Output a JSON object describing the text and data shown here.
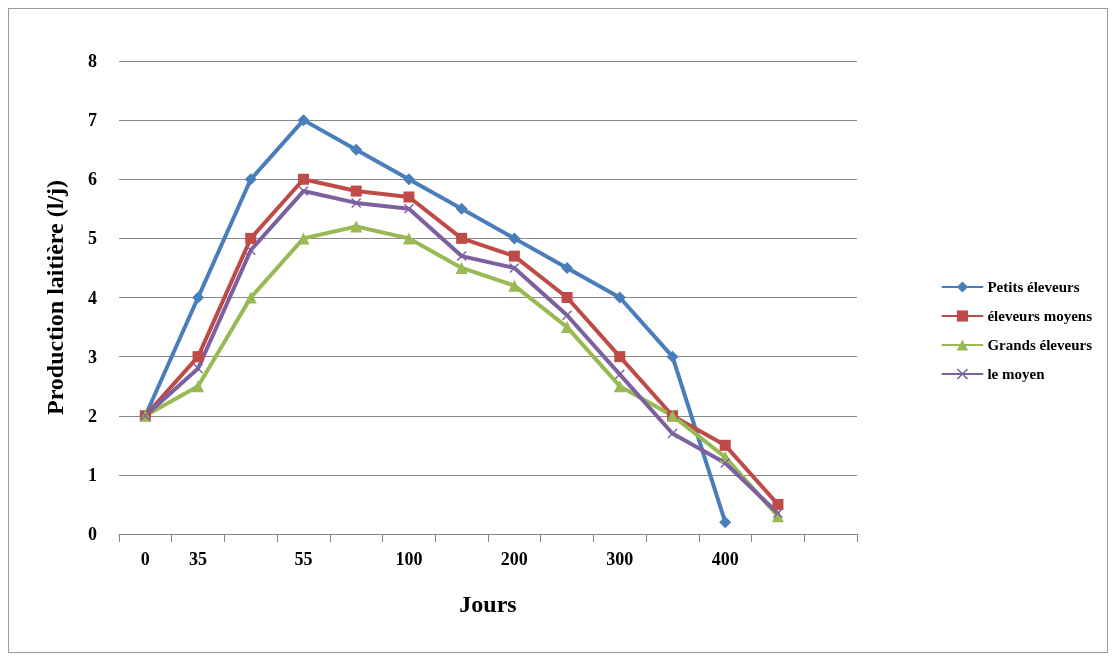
{
  "chart_data": {
    "type": "line",
    "xlabel": "Jours",
    "ylabel": "Production laitière (l/j)",
    "categories": [
      "0",
      "35",
      null,
      "55",
      null,
      "100",
      null,
      "200",
      null,
      "300",
      null,
      "400",
      null,
      null
    ],
    "ylim": [
      0,
      8
    ],
    "yticks": [
      0,
      1,
      2,
      3,
      4,
      5,
      6,
      7,
      8
    ],
    "grid": "y",
    "legend": "right",
    "series": [
      {
        "name": "Petits éleveurs",
        "color": "#4a7ebb",
        "marker": "diamond",
        "values": [
          2,
          4,
          6,
          7,
          6.5,
          6,
          5.5,
          5,
          4.5,
          4,
          3,
          0.2,
          null,
          null
        ]
      },
      {
        "name": "éleveurs moyens",
        "color": "#be4b48",
        "marker": "square",
        "values": [
          2,
          3,
          5,
          6,
          5.8,
          5.7,
          5,
          4.7,
          4,
          3,
          2,
          1.5,
          0.5,
          null
        ]
      },
      {
        "name": "Grands éleveurs",
        "color": "#98b954",
        "marker": "triangle",
        "values": [
          2,
          2.5,
          4,
          5,
          5.2,
          5,
          4.5,
          4.2,
          3.5,
          2.5,
          2,
          1.3,
          0.3,
          null
        ]
      },
      {
        "name": "le moyen",
        "color": "#7d60a0",
        "marker": "cross",
        "values": [
          2,
          2.8,
          4.8,
          5.8,
          5.6,
          5.5,
          4.7,
          4.5,
          3.7,
          2.7,
          1.7,
          1.2,
          0.35,
          null
        ]
      }
    ]
  }
}
